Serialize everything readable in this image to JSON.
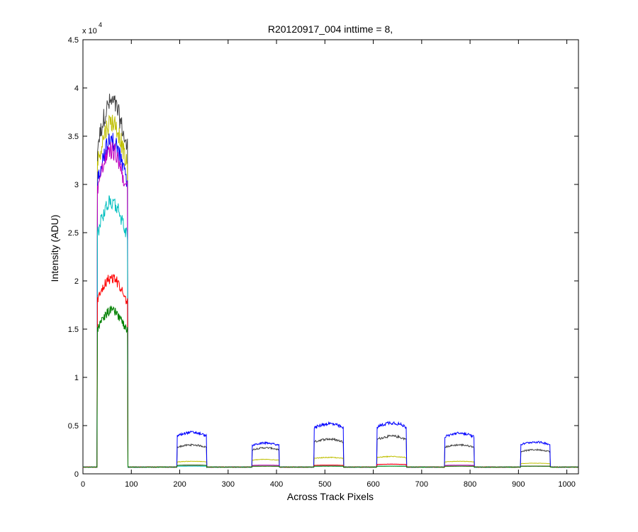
{
  "chart_data": {
    "type": "line",
    "title": "R20120917_004 inttime = 8,",
    "xlabel": "Across Track Pixels",
    "ylabel": "Intensity (ADU)",
    "xlim": [
      0,
      1024
    ],
    "ylim": [
      0,
      45000
    ],
    "xticks": [
      0,
      100,
      200,
      300,
      400,
      500,
      600,
      700,
      800,
      900,
      1000
    ],
    "yticks": [
      0,
      5000,
      10000,
      15000,
      20000,
      25000,
      30000,
      35000,
      40000,
      45000
    ],
    "ytick_labels": [
      "0",
      "0.5",
      "1",
      "1.5",
      "2",
      "2.5",
      "3",
      "3.5",
      "4",
      "4.5"
    ],
    "y_exponent_base": "x 10",
    "y_exponent_power": "4",
    "grid": false,
    "baseline": 700,
    "segments": [
      {
        "x_start": 30,
        "x_end": 92
      },
      {
        "x_start": 195,
        "x_end": 255
      },
      {
        "x_start": 350,
        "x_end": 405
      },
      {
        "x_start": 478,
        "x_end": 538
      },
      {
        "x_start": 608,
        "x_end": 668
      },
      {
        "x_start": 748,
        "x_end": 808
      },
      {
        "x_start": 905,
        "x_end": 965
      }
    ],
    "series": [
      {
        "color": "#404040",
        "peaks": [
          38500,
          3000,
          2700,
          3600,
          3900,
          3000,
          2500
        ]
      },
      {
        "color": "#bfbf00",
        "peaks": [
          36500,
          1300,
          1500,
          1700,
          1800,
          1300,
          1100
        ]
      },
      {
        "color": "#0000ff",
        "peaks": [
          34500,
          4300,
          3200,
          5200,
          5300,
          4200,
          3300
        ]
      },
      {
        "color": "#bf00bf",
        "peaks": [
          33500,
          900,
          900,
          900,
          1000,
          900,
          800
        ]
      },
      {
        "color": "#00bfbf",
        "peaks": [
          28200,
          800,
          800,
          800,
          800,
          800,
          800
        ]
      },
      {
        "color": "#ff0000",
        "peaks": [
          20300,
          900,
          800,
          900,
          1000,
          800,
          800
        ]
      },
      {
        "color": "#008000",
        "peaks": [
          16900,
          900,
          800,
          800,
          800,
          800,
          800
        ]
      }
    ]
  }
}
